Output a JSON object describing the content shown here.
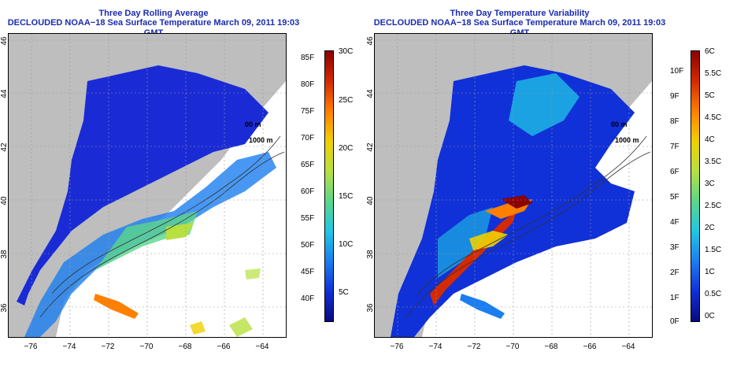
{
  "panels": [
    {
      "title": "Three Day Rolling Average",
      "subtitle": "DECLOUDED NOAA−18 Sea Surface Temperature March 09, 2011 19:03 GMT",
      "colorbar": {
        "left_labels": [
          "85F",
          "80F",
          "75F",
          "70F",
          "65F",
          "60F",
          "55F",
          "50F",
          "45F",
          "40F"
        ],
        "right_labels": [
          "30C",
          "25C",
          "20C",
          "15C",
          "10C",
          "5C"
        ],
        "colors": [
          "#8b0000",
          "#d42a00",
          "#ff7f00",
          "#f0d000",
          "#b8e040",
          "#5cd68a",
          "#1ec8e6",
          "#1a7ef0",
          "#1030d8",
          "#0a0a80"
        ]
      },
      "contour_labels": [
        "00 m",
        "1000 m"
      ]
    },
    {
      "title": "Three Day Temperature Variability",
      "subtitle": "DECLOUDED NOAA−18 Sea Surface Temperature March 09, 2011 19:03 GMT",
      "colorbar": {
        "left_labels": [
          "10F",
          "9F",
          "8F",
          "7F",
          "6F",
          "5F",
          "4F",
          "3F",
          "2F",
          "1F",
          "0F"
        ],
        "right_labels": [
          "6C",
          "5.5C",
          "5C",
          "4.5C",
          "4C",
          "3.5C",
          "3C",
          "2.5C",
          "2C",
          "1.5C",
          "1C",
          "0.5C",
          "0C"
        ],
        "colors": [
          "#8b0000",
          "#d42a00",
          "#ff7f00",
          "#f0d000",
          "#b8e040",
          "#5cd68a",
          "#1ec8e6",
          "#1a7ef0",
          "#1030d8",
          "#0a0a80"
        ]
      },
      "contour_labels": [
        "00 m",
        "1000 m"
      ]
    }
  ],
  "axes": {
    "lat_ticks": [
      "46",
      "44",
      "42",
      "40",
      "38",
      "36"
    ],
    "lon_ticks": [
      "−76",
      "−74",
      "−72",
      "−70",
      "−68",
      "−66",
      "−64"
    ]
  }
}
